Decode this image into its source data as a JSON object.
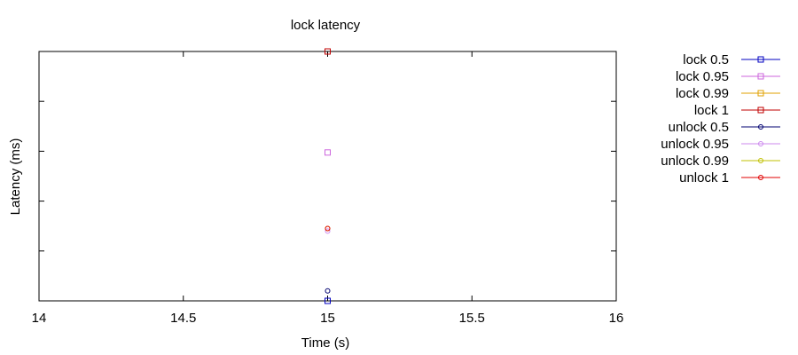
{
  "chart_data": {
    "type": "scatter",
    "title": "lock latency",
    "xlabel": "Time (s)",
    "ylabel": "Latency (ms)",
    "xlim": [
      14,
      16
    ],
    "ylim": [
      0,
      1
    ],
    "x_ticks": [
      "14",
      "14.5",
      "15",
      "15.5",
      "16"
    ],
    "x_tick_values": [
      14,
      14.5,
      15,
      15.5,
      16
    ],
    "y_tick_values": [
      0.2,
      0.4,
      0.6,
      0.8,
      1.0
    ],
    "y_tick_labels_shown": false,
    "grid": false,
    "legend_position": "right",
    "series": [
      {
        "name": "lock 0.5",
        "color": "#0000c0",
        "marker": "square",
        "x": [
          15
        ],
        "y": [
          0.0
        ]
      },
      {
        "name": "lock 0.95",
        "color": "#cc66dd",
        "marker": "square",
        "x": [
          15
        ],
        "y": [
          0.595
        ]
      },
      {
        "name": "lock 0.99",
        "color": "#e0a000",
        "marker": "square",
        "x": [
          15
        ],
        "y": [
          1.0
        ]
      },
      {
        "name": "lock 1",
        "color": "#c00000",
        "marker": "square",
        "x": [
          15
        ],
        "y": [
          1.0
        ]
      },
      {
        "name": "unlock 0.5",
        "color": "#000070",
        "marker": "circle",
        "x": [
          15
        ],
        "y": [
          0.04
        ]
      },
      {
        "name": "unlock 0.95",
        "color": "#cc88ee",
        "marker": "circle",
        "x": [
          15
        ],
        "y": [
          0.28
        ]
      },
      {
        "name": "unlock 0.99",
        "color": "#c0c000",
        "marker": "circle",
        "x": [
          15
        ],
        "y": [
          0.29
        ]
      },
      {
        "name": "unlock 1",
        "color": "#e00000",
        "marker": "circle",
        "x": [
          15
        ],
        "y": [
          0.29
        ]
      }
    ]
  }
}
